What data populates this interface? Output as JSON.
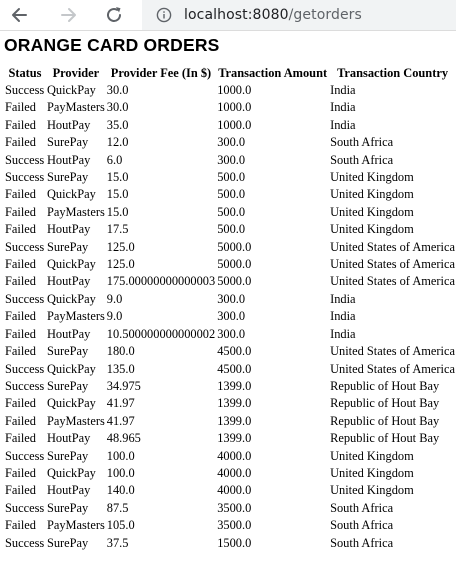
{
  "browser": {
    "url_host": "localhost:8080",
    "url_path": "/getorders"
  },
  "page": {
    "title": "ORANGE CARD ORDERS"
  },
  "table": {
    "headers": [
      "Status",
      "Provider",
      "Provider Fee (In $)",
      "Transaction Amount",
      "Transaction Country"
    ],
    "rows": [
      [
        "Success",
        "QuickPay",
        "30.0",
        "1000.0",
        "India"
      ],
      [
        "Failed",
        "PayMasters",
        "30.0",
        "1000.0",
        "India"
      ],
      [
        "Failed",
        "HoutPay",
        "35.0",
        "1000.0",
        "India"
      ],
      [
        "Failed",
        "SurePay",
        "12.0",
        "300.0",
        "South Africa"
      ],
      [
        "Success",
        "HoutPay",
        "6.0",
        "300.0",
        "South Africa"
      ],
      [
        "Success",
        "SurePay",
        "15.0",
        "500.0",
        "United Kingdom"
      ],
      [
        "Failed",
        "QuickPay",
        "15.0",
        "500.0",
        "United Kingdom"
      ],
      [
        "Failed",
        "PayMasters",
        "15.0",
        "500.0",
        "United Kingdom"
      ],
      [
        "Failed",
        "HoutPay",
        "17.5",
        "500.0",
        "United Kingdom"
      ],
      [
        "Success",
        "SurePay",
        "125.0",
        "5000.0",
        "United States of America"
      ],
      [
        "Failed",
        "QuickPay",
        "125.0",
        "5000.0",
        "United States of America"
      ],
      [
        "Failed",
        "HoutPay",
        "175.00000000000003",
        "5000.0",
        "United States of America"
      ],
      [
        "Success",
        "QuickPay",
        "9.0",
        "300.0",
        "India"
      ],
      [
        "Failed",
        "PayMasters",
        "9.0",
        "300.0",
        "India"
      ],
      [
        "Failed",
        "HoutPay",
        "10.500000000000002",
        "300.0",
        "India"
      ],
      [
        "Failed",
        "SurePay",
        "180.0",
        "4500.0",
        "United States of America"
      ],
      [
        "Success",
        "QuickPay",
        "135.0",
        "4500.0",
        "United States of America"
      ],
      [
        "Success",
        "SurePay",
        "34.975",
        "1399.0",
        "Republic of Hout Bay"
      ],
      [
        "Failed",
        "QuickPay",
        "41.97",
        "1399.0",
        "Republic of Hout Bay"
      ],
      [
        "Failed",
        "PayMasters",
        "41.97",
        "1399.0",
        "Republic of Hout Bay"
      ],
      [
        "Failed",
        "HoutPay",
        "48.965",
        "1399.0",
        "Republic of Hout Bay"
      ],
      [
        "Success",
        "SurePay",
        "100.0",
        "4000.0",
        "United Kingdom"
      ],
      [
        "Failed",
        "QuickPay",
        "100.0",
        "4000.0",
        "United Kingdom"
      ],
      [
        "Failed",
        "HoutPay",
        "140.0",
        "4000.0",
        "United Kingdom"
      ],
      [
        "Success",
        "SurePay",
        "87.5",
        "3500.0",
        "South Africa"
      ],
      [
        "Failed",
        "PayMasters",
        "105.0",
        "3500.0",
        "South Africa"
      ],
      [
        "Success",
        "SurePay",
        "37.5",
        "1500.0",
        "South Africa"
      ]
    ]
  }
}
